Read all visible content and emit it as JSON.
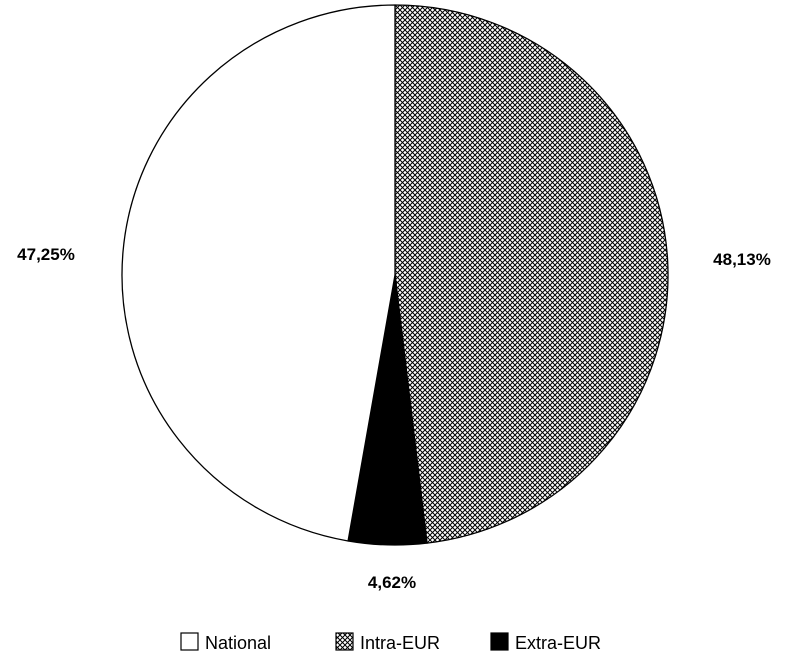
{
  "chart_data": {
    "type": "pie",
    "slices": [
      {
        "name": "Intra-EUR",
        "value": 48.13,
        "label": "48,13%",
        "pattern": "crosshatch"
      },
      {
        "name": "Extra-EUR",
        "value": 4.62,
        "label": "4,62%",
        "pattern": "solid"
      },
      {
        "name": "National",
        "value": 47.25,
        "label": "47,25%",
        "pattern": "none"
      }
    ],
    "start_angle": "12 o'clock",
    "direction": "clockwise",
    "legend": {
      "placement": "bottom",
      "items": [
        {
          "name": "National",
          "pattern": "none"
        },
        {
          "name": "Intra-EUR",
          "pattern": "crosshatch"
        },
        {
          "name": "Extra-EUR",
          "pattern": "solid"
        }
      ]
    },
    "colors": {
      "fill_white": "#ffffff",
      "fill_black": "#000000",
      "stroke": "#000000",
      "hatch_line": "#000000",
      "hatch_bg": "#ffffff"
    }
  }
}
